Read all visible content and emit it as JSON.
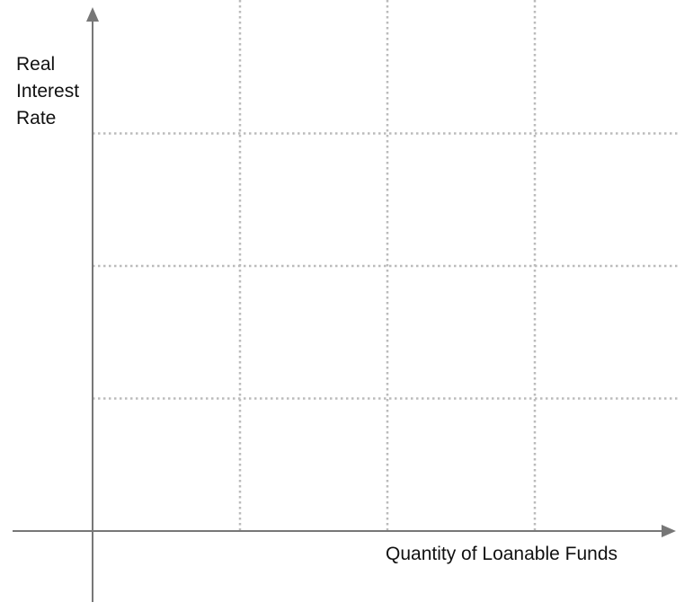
{
  "chart_data": {
    "type": "line",
    "title": "",
    "xlabel": "Quantity of Loanable Funds",
    "ylabel_lines": [
      "Real",
      "Interest",
      "Rate"
    ],
    "x_gridlines": 3,
    "y_gridlines": 3,
    "grid": true,
    "grid_style": "dotted",
    "series": []
  },
  "colors": {
    "axis": "#777777",
    "grid": "#bbbbbb",
    "text": "#111111"
  }
}
